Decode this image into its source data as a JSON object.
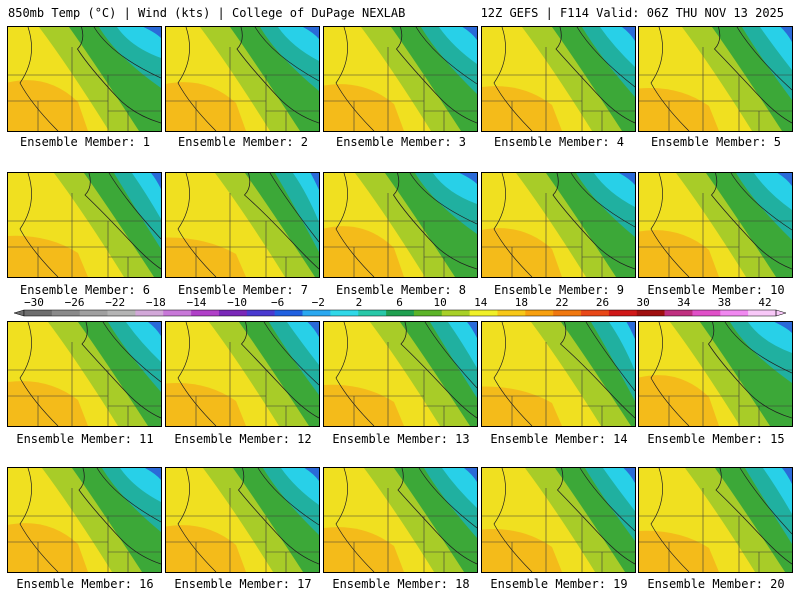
{
  "header": {
    "left": "850mb Temp (°C) | Wind (kts) | College of DuPage NEXLAB",
    "right": "12Z GEFS | F114 Valid: 06Z THU NOV 13 2025"
  },
  "members": [
    "Ensemble Member: 1",
    "Ensemble Member: 2",
    "Ensemble Member: 3",
    "Ensemble Member: 4",
    "Ensemble Member: 5",
    "Ensemble Member: 6",
    "Ensemble Member: 7",
    "Ensemble Member: 8",
    "Ensemble Member: 9",
    "Ensemble Member: 10",
    "Ensemble Member: 11",
    "Ensemble Member: 12",
    "Ensemble Member: 13",
    "Ensemble Member: 14",
    "Ensemble Member: 15",
    "Ensemble Member: 16",
    "Ensemble Member: 17",
    "Ensemble Member: 18",
    "Ensemble Member: 19",
    "Ensemble Member: 20"
  ],
  "colorbar": {
    "tick_labels": [
      "−30",
      "−26",
      "−22",
      "−18",
      "−14",
      "−10",
      "−6",
      "−2",
      "2",
      "6",
      "10",
      "14",
      "18",
      "22",
      "26",
      "30",
      "34",
      "38",
      "42"
    ],
    "colors": [
      "#6e6e6e",
      "#8a8a8a",
      "#a0a0a0",
      "#b4b4b4",
      "#d2a8d8",
      "#c878d8",
      "#b040c8",
      "#7a28b8",
      "#4a3ad0",
      "#2060e0",
      "#2aa8f0",
      "#30d8e8",
      "#28c8a8",
      "#20a050",
      "#5cb428",
      "#a8d028",
      "#f0f028",
      "#f8c818",
      "#f8a010",
      "#f07810",
      "#e84818",
      "#d01818",
      "#a01010",
      "#c03080",
      "#e050c8",
      "#f088f0",
      "#f8c8f8"
    ]
  }
}
